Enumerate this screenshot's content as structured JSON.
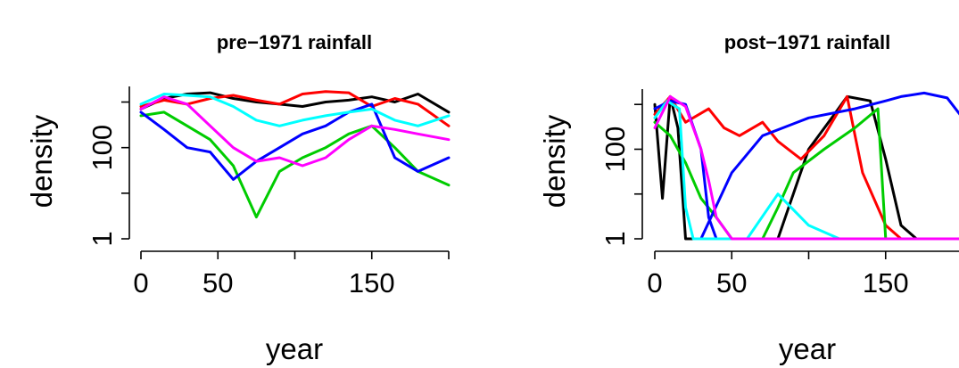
{
  "chart_data": [
    {
      "type": "line",
      "title": "pre−1971 rainfall",
      "xlabel": "year",
      "ylabel": "density",
      "xlim": [
        0,
        200
      ],
      "ylim": [
        1,
        2200
      ],
      "y_scale": "log",
      "x_ticks": [
        0,
        50,
        150
      ],
      "x_tick_labels": [
        "0",
        "50",
        "150"
      ],
      "x_tick_marks": [
        0,
        50,
        100,
        150,
        200
      ],
      "y_ticks": [
        1,
        10,
        100,
        1000
      ],
      "y_tick_labels": [
        "1",
        "",
        "100",
        ""
      ],
      "series": [
        {
          "color": "#000000",
          "x": [
            0,
            15,
            30,
            45,
            60,
            75,
            90,
            105,
            120,
            135,
            150,
            165,
            180,
            200
          ],
          "values": [
            700,
            1200,
            1500,
            1600,
            1200,
            1000,
            900,
            800,
            1000,
            1100,
            1300,
            1000,
            1500,
            600
          ]
        },
        {
          "color": "#ff0000",
          "x": [
            0,
            15,
            30,
            45,
            60,
            75,
            90,
            105,
            120,
            135,
            150,
            165,
            180,
            200
          ],
          "values": [
            800,
            1100,
            900,
            1200,
            1400,
            1100,
            900,
            1500,
            1700,
            1600,
            800,
            1200,
            900,
            300
          ]
        },
        {
          "color": "#00cc00",
          "x": [
            0,
            15,
            30,
            45,
            60,
            75,
            90,
            105,
            120,
            135,
            150,
            165,
            180,
            200
          ],
          "values": [
            500,
            600,
            300,
            150,
            40,
            3,
            30,
            60,
            100,
            200,
            300,
            100,
            30,
            15
          ]
        },
        {
          "color": "#0000ff",
          "x": [
            0,
            15,
            30,
            45,
            60,
            75,
            90,
            105,
            120,
            135,
            150,
            165,
            180,
            200
          ],
          "values": [
            600,
            250,
            100,
            80,
            20,
            50,
            100,
            200,
            300,
            600,
            900,
            60,
            30,
            60
          ]
        },
        {
          "color": "#00ffff",
          "x": [
            0,
            15,
            30,
            45,
            60,
            75,
            90,
            105,
            120,
            135,
            150,
            165,
            180,
            200
          ],
          "values": [
            900,
            1500,
            1400,
            1300,
            800,
            400,
            300,
            400,
            500,
            600,
            700,
            400,
            300,
            500
          ]
        },
        {
          "color": "#ff00ff",
          "x": [
            0,
            15,
            30,
            45,
            60,
            75,
            90,
            105,
            120,
            135,
            150,
            165,
            180,
            200
          ],
          "values": [
            700,
            1300,
            900,
            300,
            100,
            50,
            60,
            40,
            60,
            150,
            300,
            250,
            200,
            150
          ]
        }
      ]
    },
    {
      "type": "line",
      "title": "post−1971 rainfall",
      "xlabel": "year",
      "ylabel": "density",
      "xlim": [
        0,
        200
      ],
      "ylim": [
        1,
        2200
      ],
      "y_scale": "log",
      "x_ticks": [
        0,
        50,
        150
      ],
      "x_tick_labels": [
        "0",
        "50",
        "150"
      ],
      "x_tick_marks": [
        0,
        50,
        100,
        150,
        200
      ],
      "y_ticks": [
        1,
        10,
        100,
        1000
      ],
      "y_tick_labels": [
        "1",
        "",
        "100",
        ""
      ],
      "series": [
        {
          "color": "#000000",
          "x": [
            0,
            5,
            10,
            15,
            20,
            40,
            80,
            100,
            115,
            125,
            140,
            150,
            160,
            170,
            200
          ],
          "values": [
            1000,
            8,
            1500,
            300,
            1,
            1,
            1,
            100,
            500,
            1500,
            1200,
            60,
            2,
            1,
            1
          ]
        },
        {
          "color": "#ff0000",
          "x": [
            0,
            10,
            20,
            35,
            45,
            55,
            70,
            80,
            95,
            110,
            125,
            135,
            150,
            160,
            200
          ],
          "values": [
            600,
            1500,
            400,
            800,
            300,
            200,
            400,
            150,
            60,
            200,
            1500,
            30,
            2,
            1,
            1
          ]
        },
        {
          "color": "#00cc00",
          "x": [
            0,
            10,
            20,
            30,
            40,
            50,
            60,
            70,
            80,
            90,
            110,
            130,
            145,
            150,
            160,
            200
          ],
          "values": [
            400,
            200,
            50,
            8,
            3,
            1,
            1,
            1,
            5,
            30,
            100,
            300,
            800,
            1,
            1,
            1
          ]
        },
        {
          "color": "#0000ff",
          "x": [
            0,
            10,
            20,
            30,
            35,
            40,
            100,
            130,
            150,
            170,
            180,
            190,
            200
          ],
          "values": [
            800,
            1200,
            1000,
            100,
            3,
            1,
            1,
            1,
            1,
            1,
            1,
            1,
            1
          ]
        },
        {
          "color": "#0000ff",
          "x": [
            30,
            50,
            70,
            100,
            130,
            150,
            160,
            175,
            190,
            200
          ],
          "values": [
            1,
            30,
            200,
            500,
            800,
            1200,
            1500,
            1800,
            1400,
            500
          ]
        },
        {
          "color": "#00ffff",
          "x": [
            0,
            8,
            16,
            20,
            25,
            40,
            60,
            80,
            100,
            120,
            140,
            160,
            200
          ],
          "values": [
            500,
            1200,
            800,
            5,
            1,
            1,
            1,
            10,
            2,
            1,
            1,
            1,
            1
          ]
        },
        {
          "color": "#ff00ff",
          "x": [
            0,
            10,
            20,
            30,
            35,
            40,
            50,
            60,
            80,
            100,
            150,
            200
          ],
          "values": [
            300,
            1500,
            900,
            100,
            20,
            3,
            1,
            1,
            1,
            1,
            1,
            1
          ]
        }
      ]
    }
  ]
}
